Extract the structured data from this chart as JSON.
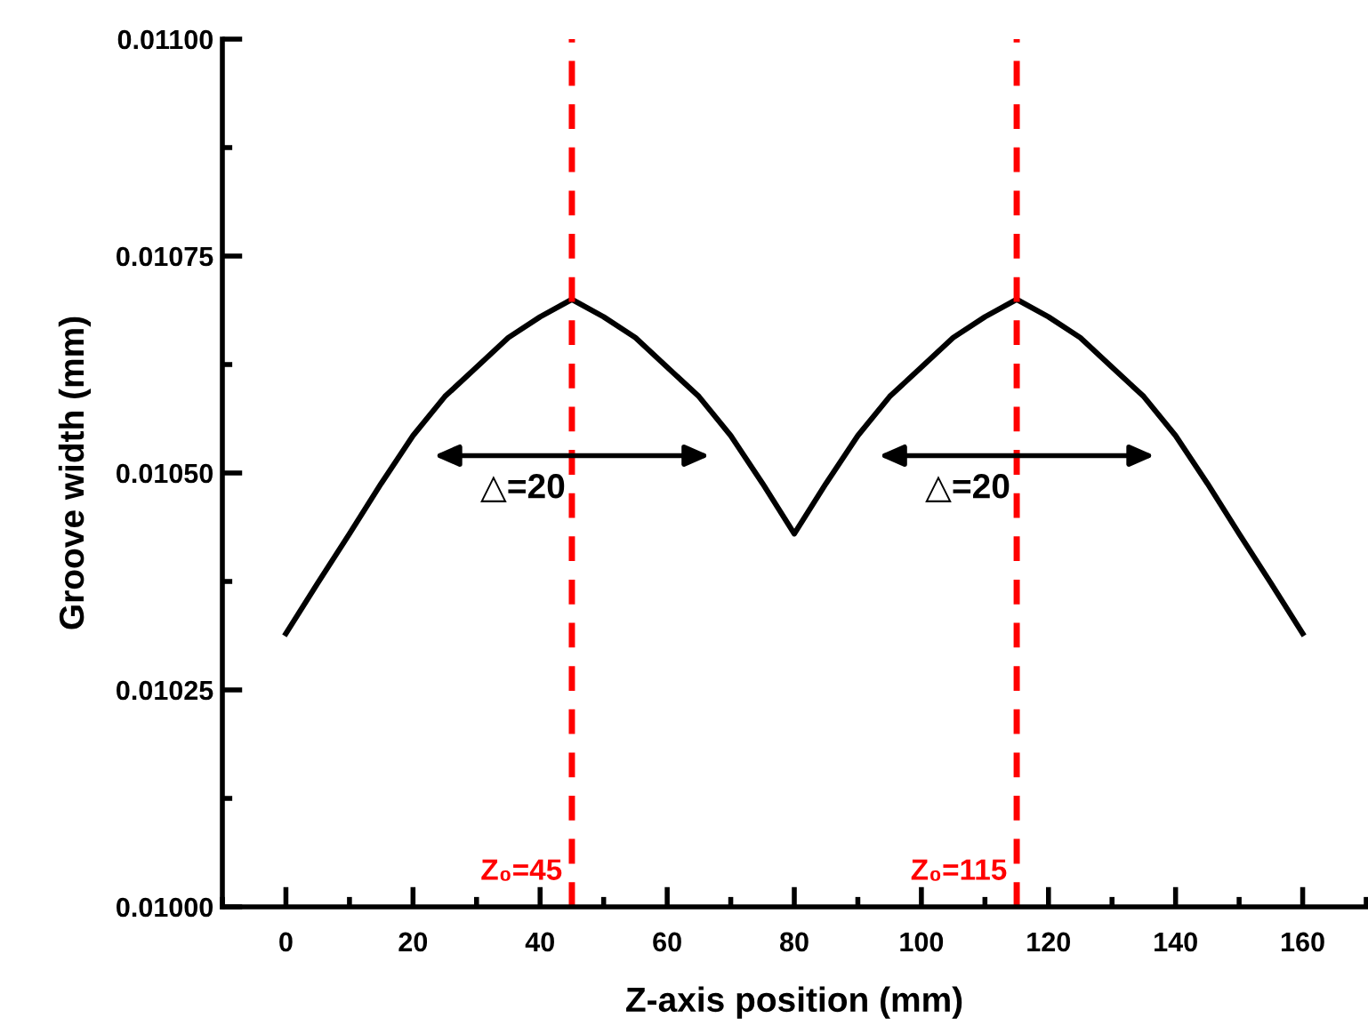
{
  "chart_data": {
    "type": "line",
    "xlabel": "Z-axis position (mm)",
    "ylabel": "Groove width (mm)",
    "x": [
      0,
      5,
      10,
      15,
      20,
      25,
      30,
      35,
      40,
      45,
      50,
      55,
      60,
      65,
      70,
      75,
      80,
      85,
      90,
      95,
      100,
      105,
      110,
      115,
      120,
      125,
      130,
      135,
      140,
      145,
      150,
      155,
      160
    ],
    "series": [
      {
        "color": "#000000",
        "values": [
          0.010315,
          0.010373,
          0.01043,
          0.010488,
          0.010543,
          0.010588,
          0.010622,
          0.010656,
          0.01068,
          0.0107,
          0.01068,
          0.010656,
          0.010622,
          0.010588,
          0.010543,
          0.010488,
          0.01043,
          0.010488,
          0.010543,
          0.010588,
          0.010622,
          0.010656,
          0.01068,
          0.0107,
          0.01068,
          0.010656,
          0.010622,
          0.010588,
          0.010543,
          0.010488,
          0.01043,
          0.010373,
          0.010315
        ]
      }
    ],
    "xlim": [
      -10,
      170
    ],
    "xticks": [
      0,
      20,
      40,
      60,
      80,
      100,
      120,
      140,
      160
    ],
    "ylim": [
      0.01,
      0.011
    ],
    "yticks": [
      {
        "value": 0.01,
        "label": "0.01000"
      },
      {
        "value": 0.01025,
        "label": "0.01025"
      },
      {
        "value": 0.0105,
        "label": "0.01050"
      },
      {
        "value": 0.01075,
        "label": "0.01075"
      },
      {
        "value": 0.011,
        "label": "0.01100"
      }
    ],
    "ref_lines": [
      {
        "axis": "x",
        "value": 45,
        "label": "Z₀=45",
        "color": "#ff0000",
        "line_style": "dashed"
      },
      {
        "axis": "x",
        "value": 115,
        "label": "Z₀=115",
        "color": "#ff0000",
        "line_style": "dashed"
      }
    ],
    "annotations": [
      {
        "text": "△=20",
        "x": 45,
        "y": 0.01052
      },
      {
        "text": "△=20",
        "x": 115,
        "y": 0.01052
      }
    ],
    "grid": false,
    "legend": false,
    "marker": "none",
    "line_style": "solid"
  }
}
